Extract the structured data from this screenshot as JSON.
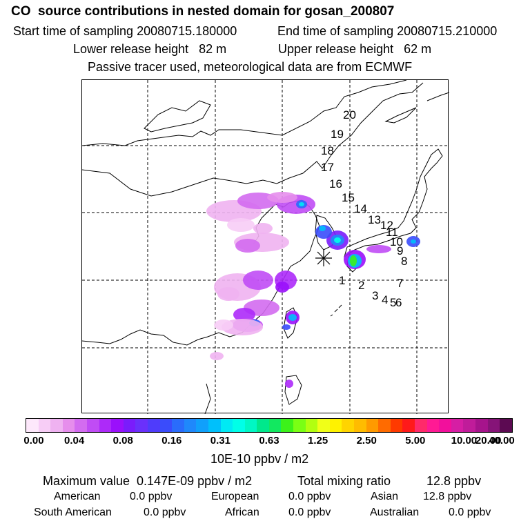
{
  "header": {
    "title": "CO  source contributions in nested domain for gosan_200807",
    "start_label": "Start time of sampling 20080715.180000",
    "end_label": "End time of sampling 20080715.210000",
    "lower_label": "Lower release height   82 m",
    "upper_label": "Upper release height   62 m",
    "tracer_label": "Passive tracer used, meteorological data are from ECMWF"
  },
  "colorbar": {
    "colors": [
      "#fde8fb",
      "#f7cdf6",
      "#efb2f1",
      "#e68eec",
      "#d36cf0",
      "#c04cf5",
      "#ad2af9",
      "#9a10fb",
      "#7a1cfb",
      "#6a30fb",
      "#4f3cfb",
      "#3a4cfb",
      "#2a6cfb",
      "#1f88fb",
      "#10a0fb",
      "#00c0fb",
      "#00eaf4",
      "#00ffe8",
      "#00f7c4",
      "#00e88c",
      "#12e860",
      "#3cf21a",
      "#7aff14",
      "#b2ff10",
      "#f0ff18",
      "#fff200",
      "#ffd400",
      "#ffbc00",
      "#ff9a00",
      "#ff6b00",
      "#ff3a00",
      "#ff1a1a",
      "#ff2a6a",
      "#ff1a94",
      "#f2109c",
      "#d61ea4",
      "#c01c9a",
      "#a6148c",
      "#861478",
      "#5c0a52"
    ],
    "tick_labels": [
      "0.00",
      "0.04",
      "0.08",
      "0.16",
      "0.31",
      "0.63",
      "1.25",
      "2.50",
      "5.00",
      "10.00",
      "20.00",
      "40.00"
    ],
    "units": "10E-10 ppbv / m2"
  },
  "chart_data": {
    "type": "heatmap",
    "title": "CO  source contributions in nested domain for gosan_200807",
    "colorbar_label": "10E-10 ppbv / m2",
    "color_levels": [
      0.0,
      0.04,
      0.08,
      0.16,
      0.31,
      0.63,
      1.25,
      2.5,
      5.0,
      10.0,
      20.0,
      40.0
    ],
    "receptor_marker": "asterisk",
    "trajectory_labels": [
      "1",
      "2",
      "3",
      "4",
      "5",
      "6",
      "7",
      "8",
      "9",
      "10",
      "11",
      "12",
      "13",
      "14",
      "15",
      "16",
      "17",
      "18",
      "19",
      "20"
    ],
    "grid": true,
    "maximum_value": "0.147E-09 ppbv / m2",
    "total_mixing_ratio": "12.8 ppbv",
    "regions": [
      {
        "name": "American",
        "value": "0.0 ppbv"
      },
      {
        "name": "European",
        "value": "0.0 ppbv"
      },
      {
        "name": "Asian",
        "value": "12.8 ppbv"
      },
      {
        "name": "South American",
        "value": "0.0 ppbv"
      },
      {
        "name": "African",
        "value": "0.0 ppbv"
      },
      {
        "name": "Australian",
        "value": "0.0 ppbv"
      }
    ]
  },
  "summary": {
    "max_label": "Maximum value  0.147E-09 ppbv / m2",
    "total_label": "Total mixing ratio",
    "total_value": "12.8 ppbv"
  },
  "regions": {
    "american_label": "American",
    "american_value": "0.0 ppbv",
    "european_label": "European",
    "european_value": "0.0 ppbv",
    "asian_label": "Asian",
    "asian_value": "12.8 ppbv",
    "south_american_label": "South American",
    "south_american_value": "0.0 ppbv",
    "african_label": "African",
    "african_value": "0.0 ppbv",
    "australian_label": "Australian",
    "australian_value": "0.0 ppbv"
  }
}
